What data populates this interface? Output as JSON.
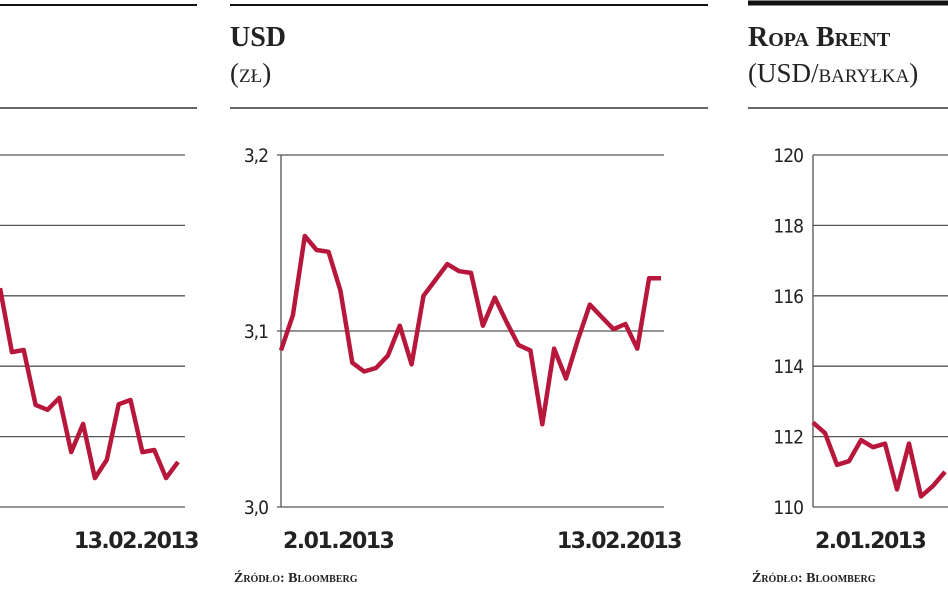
{
  "chart_data": [
    {
      "type": "line",
      "tick_labels": false,
      "categories": [
        null,
        null,
        null,
        null,
        null,
        null,
        null,
        null,
        null,
        null,
        null,
        null,
        null,
        null,
        null,
        "13.02.2013"
      ],
      "values": [
        3.11,
        2.2,
        2.23,
        1.45,
        1.38,
        1.55,
        0.78,
        1.18,
        0.41,
        0.67,
        1.46,
        1.52,
        0.78,
        0.81,
        0.41,
        0.64
      ],
      "color": "#b8173c",
      "ylim": [
        0,
        5
      ],
      "yticks": [
        0,
        1,
        2,
        3,
        4,
        5
      ],
      "grid": true
    },
    {
      "type": "line",
      "title": "USD",
      "subtitle": "(zł)",
      "source": "Źródło: Bloomberg",
      "tick_labels": true,
      "categories": [
        "2.01.2013",
        null,
        null,
        null,
        null,
        null,
        null,
        null,
        null,
        null,
        null,
        null,
        null,
        null,
        null,
        null,
        null,
        null,
        null,
        null,
        null,
        null,
        null,
        null,
        null,
        null,
        null,
        null,
        null,
        null,
        null,
        null,
        "13.02.2013"
      ],
      "values": [
        3.089,
        3.109,
        3.154,
        3.146,
        3.145,
        3.123,
        3.082,
        3.077,
        3.079,
        3.086,
        3.103,
        3.081,
        3.12,
        3.129,
        3.138,
        3.134,
        3.133,
        3.103,
        3.119,
        3.105,
        3.092,
        3.089,
        3.047,
        3.09,
        3.073,
        3.095,
        3.115,
        3.108,
        3.101,
        3.104,
        3.09,
        3.13,
        3.13
      ],
      "color": "#b8173c",
      "ylim": [
        3.0,
        3.2
      ],
      "yticks": [
        {
          "value": 3.0,
          "label": "3,0"
        },
        {
          "value": 3.1,
          "label": "3,1"
        },
        {
          "value": 3.2,
          "label": "3,2"
        }
      ],
      "grid": true
    },
    {
      "type": "line",
      "title": "Ropa Brent",
      "subtitle": "(USD/baryłka)",
      "source": "Źródło: Bloomberg",
      "tick_labels": true,
      "categories": [
        "2.01.2013",
        null,
        null,
        null,
        null,
        null,
        null,
        null,
        null,
        null,
        null,
        null
      ],
      "values": [
        112.4,
        112.1,
        111.2,
        111.3,
        111.9,
        111.7,
        111.8,
        110.5,
        111.8,
        110.3,
        110.6,
        111.0
      ],
      "color": "#b8173c",
      "ylim": [
        110,
        120
      ],
      "yticks": [
        110,
        112,
        114,
        116,
        118,
        120
      ],
      "grid": true
    }
  ]
}
